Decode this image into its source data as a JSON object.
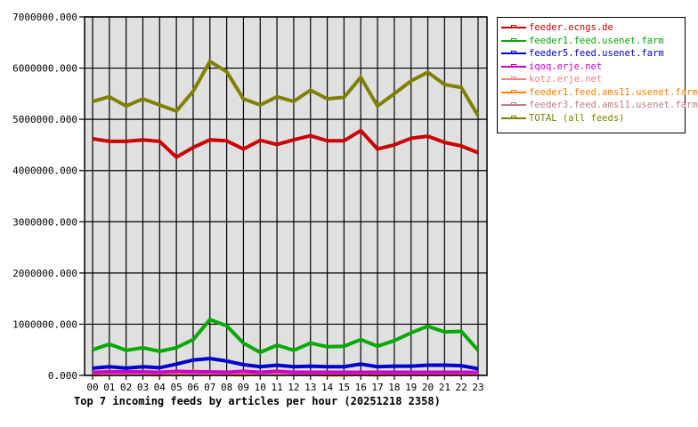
{
  "chart_data": {
    "type": "line",
    "title": "Top 7 incoming feeds by articles per hour (20251218 2358)",
    "xlabel": "",
    "ylabel": "",
    "ylim": [
      0,
      7000000
    ],
    "yticks": [
      "0.000",
      "1000000.000",
      "2000000.000",
      "3000000.000",
      "4000000.000",
      "5000000.000",
      "6000000.000",
      "7000000.000"
    ],
    "categories": [
      "00",
      "01",
      "02",
      "03",
      "04",
      "05",
      "06",
      "07",
      "08",
      "09",
      "10",
      "11",
      "12",
      "13",
      "14",
      "15",
      "16",
      "17",
      "18",
      "19",
      "20",
      "21",
      "22",
      "23"
    ],
    "grid": true,
    "legend_position": "right",
    "series": [
      {
        "name": "feeder.ecngs.de",
        "color": "#cc0000",
        "values": [
          4620000,
          4570000,
          4570000,
          4600000,
          4570000,
          4260000,
          4450000,
          4600000,
          4580000,
          4420000,
          4590000,
          4510000,
          4600000,
          4680000,
          4580000,
          4580000,
          4780000,
          4420000,
          4500000,
          4630000,
          4670000,
          4550000,
          4480000,
          4350000
        ]
      },
      {
        "name": "feeder1.feed.usenet.farm",
        "color": "#00aa00",
        "values": [
          500000,
          610000,
          490000,
          540000,
          470000,
          540000,
          700000,
          1090000,
          970000,
          630000,
          450000,
          590000,
          490000,
          630000,
          560000,
          570000,
          700000,
          570000,
          680000,
          830000,
          960000,
          850000,
          860000,
          490000
        ]
      },
      {
        "name": "feeder5.feed.usenet.farm",
        "color": "#0000cc",
        "values": [
          140000,
          170000,
          140000,
          170000,
          150000,
          220000,
          300000,
          330000,
          280000,
          210000,
          170000,
          200000,
          170000,
          180000,
          170000,
          170000,
          220000,
          170000,
          180000,
          180000,
          200000,
          200000,
          190000,
          130000
        ]
      },
      {
        "name": "iqoq.erje.net",
        "color": "#cc00cc",
        "values": [
          60000,
          70000,
          70000,
          70000,
          60000,
          80000,
          70000,
          70000,
          60000,
          80000,
          60000,
          80000,
          60000,
          60000,
          60000,
          60000,
          60000,
          60000,
          60000,
          60000,
          60000,
          60000,
          60000,
          60000
        ]
      },
      {
        "name": "kotz.erje.net",
        "color": "#f08080",
        "values": [
          30000,
          40000,
          40000,
          40000,
          40000,
          60000,
          50000,
          40000,
          40000,
          40000,
          40000,
          40000,
          40000,
          40000,
          40000,
          40000,
          40000,
          40000,
          40000,
          40000,
          40000,
          40000,
          40000,
          40000
        ]
      },
      {
        "name": "feeder1.feed.ams11.usenet.farm",
        "color": "#ff8000",
        "values": [
          10000,
          20000,
          30000,
          20000,
          10000,
          40000,
          80000,
          60000,
          20000,
          10000,
          30000,
          20000,
          40000,
          30000,
          10000,
          10000,
          20000,
          10000,
          20000,
          20000,
          20000,
          20000,
          20000,
          20000
        ]
      },
      {
        "name": "feeder3.feed.ams11.usenet.farm",
        "color": "#c08080",
        "values": [
          40000,
          40000,
          40000,
          40000,
          40000,
          40000,
          40000,
          40000,
          40000,
          40000,
          40000,
          40000,
          40000,
          40000,
          40000,
          40000,
          40000,
          40000,
          40000,
          40000,
          40000,
          40000,
          40000,
          40000
        ]
      },
      {
        "name": "TOTAL (all feeds)",
        "color": "#808000",
        "values": [
          5350000,
          5440000,
          5260000,
          5400000,
          5280000,
          5160000,
          5550000,
          6130000,
          5930000,
          5400000,
          5280000,
          5440000,
          5350000,
          5570000,
          5400000,
          5430000,
          5820000,
          5260000,
          5500000,
          5750000,
          5920000,
          5680000,
          5620000,
          5070000
        ]
      }
    ]
  },
  "caption": "Top 7 incoming feeds by articles per hour (20251218 2358)",
  "legend": [
    {
      "label": "feeder.ecngs.de",
      "color": "#cc0000"
    },
    {
      "label": "feeder1.feed.usenet.farm",
      "color": "#00aa00"
    },
    {
      "label": "feeder5.feed.usenet.farm",
      "color": "#0000cc"
    },
    {
      "label": "iqoq.erje.net",
      "color": "#cc00cc"
    },
    {
      "label": "kotz.erje.net",
      "color": "#f08080"
    },
    {
      "label": "feeder1.feed.ams11.usenet.farm",
      "color": "#ff8000"
    },
    {
      "label": "feeder3.feed.ams11.usenet.farm",
      "color": "#c08080"
    },
    {
      "label": "TOTAL (all feeds)",
      "color": "#808000"
    }
  ],
  "colors": {
    "plot_background": "#e0e0e0",
    "grid": "#000000"
  }
}
